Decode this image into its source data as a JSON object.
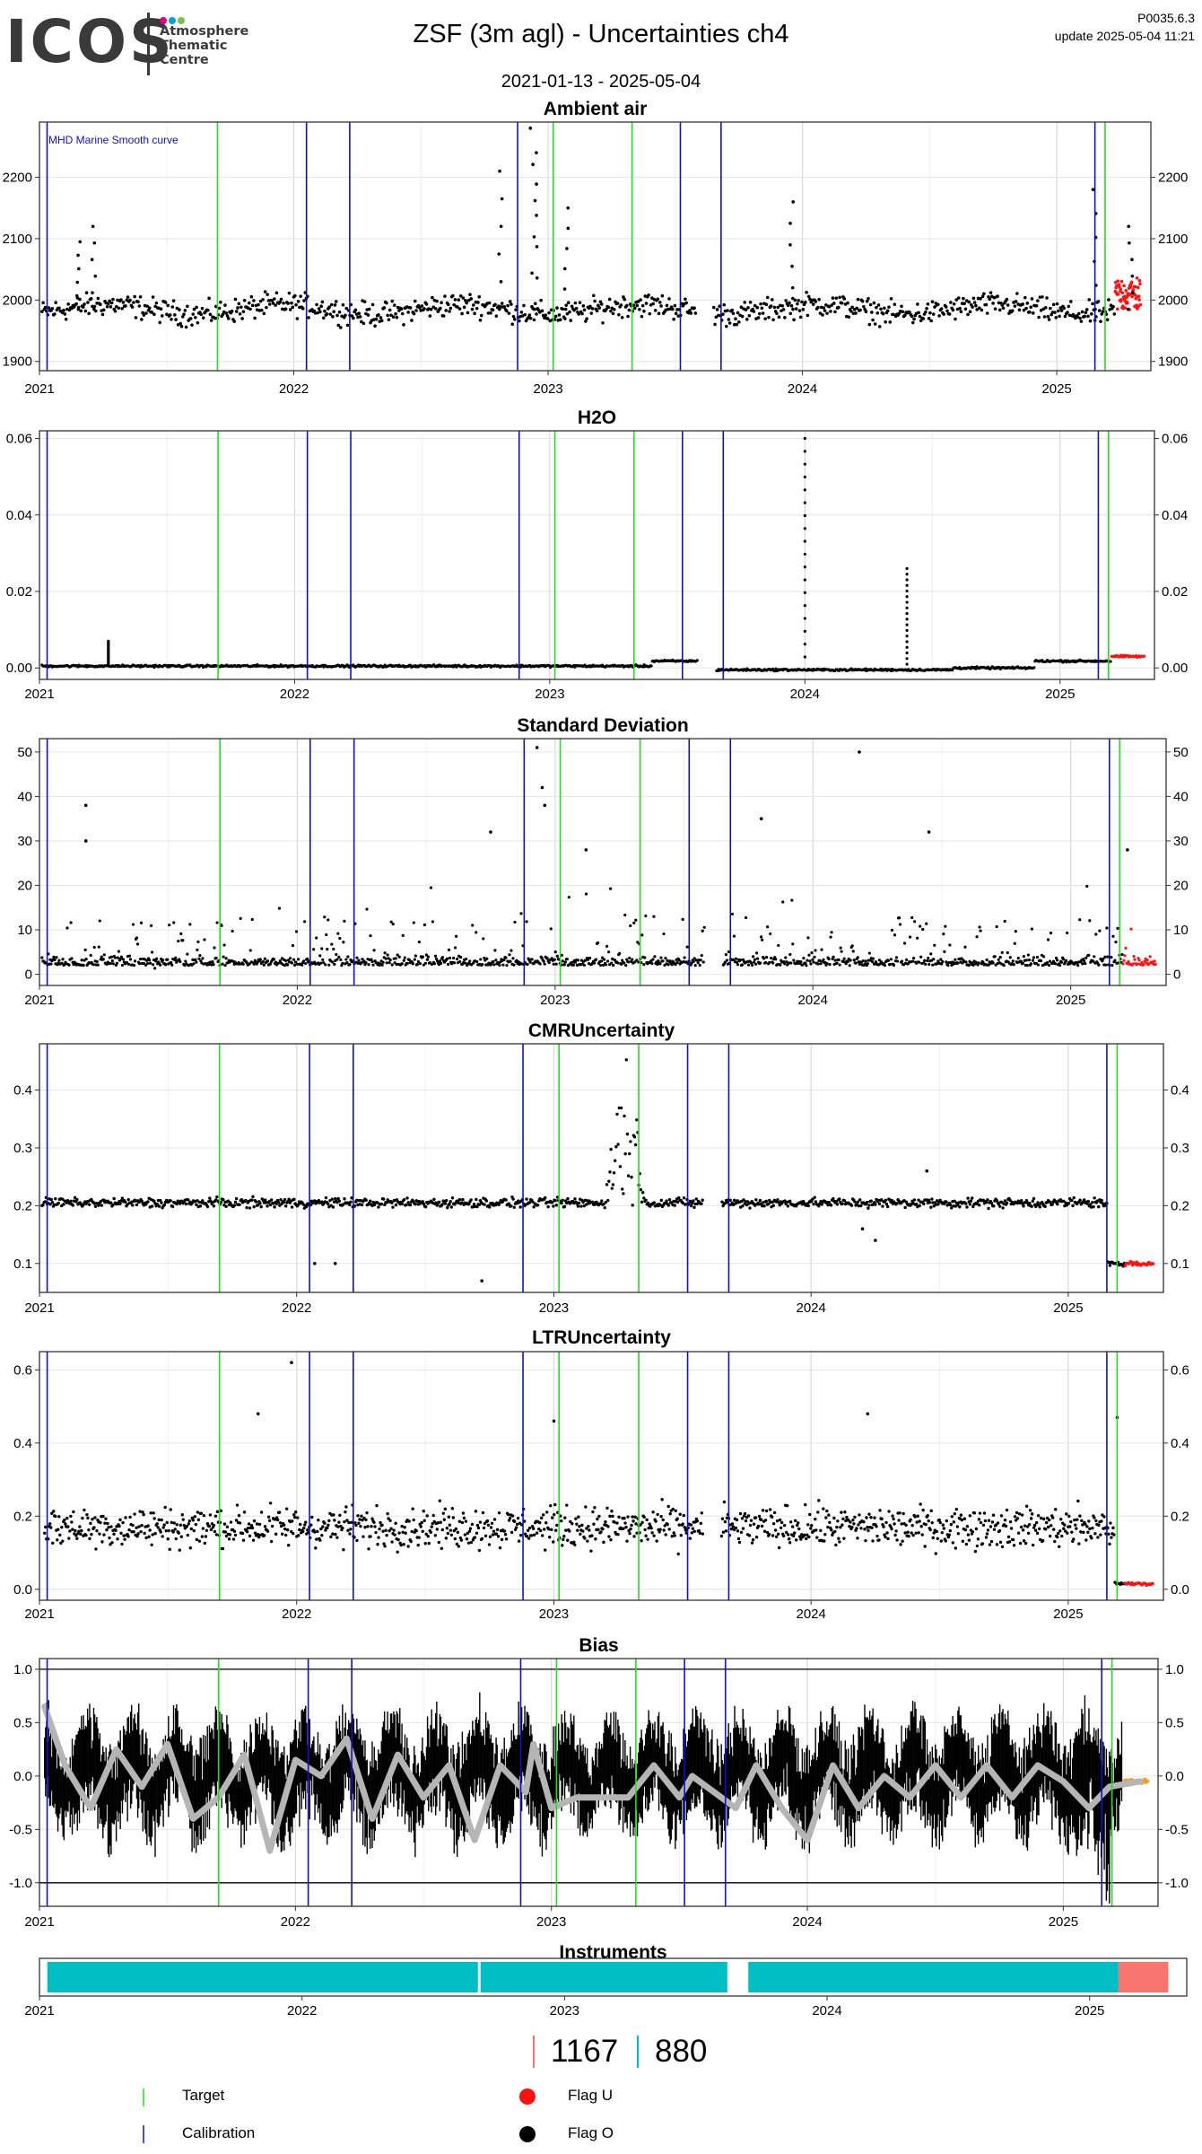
{
  "header": {
    "logo_text": "ICOS",
    "logo_subtitle": "Atmosphere\nThematic\nCentre",
    "logo_dot_colors": [
      "#e6007e",
      "#00a0e3",
      "#7ac143"
    ],
    "title": "ZSF  (3m agl) - Uncertainties ch4",
    "date_range": "2021-01-13 - 2025-05-04",
    "version": "P0035.6.3",
    "update": "update  2025-05-04 11:21"
  },
  "colors": {
    "target": "#22dd22",
    "calibration": "#1010cc",
    "flag_o": "#000000",
    "flag_u": "#ff1111",
    "flag_orange": "#f0a020",
    "bias_smooth": "#b5b5b5",
    "instrument_teal": "#00bfc4",
    "instrument_salmon": "#f8766d"
  },
  "chart_data": [
    {
      "type": "scatter",
      "title": "Ambient air",
      "annotation": "MHD Marine Smooth curve",
      "yticks": [
        1900,
        2000,
        2100,
        2200
      ],
      "ylim": [
        1885,
        2290
      ],
      "xlim": [
        2021.0,
        2025.37
      ],
      "xticks": [
        "2021",
        "2022",
        "2023",
        "2024",
        "2025"
      ],
      "baseline": 1985,
      "spread": 28,
      "red_level": 2010,
      "spikes": [
        [
          2021.14,
          2095
        ],
        [
          2021.2,
          2120
        ],
        [
          2022.8,
          2210
        ],
        [
          2022.93,
          2280
        ],
        [
          2022.95,
          2240
        ],
        [
          2023.06,
          2150
        ],
        [
          2023.95,
          2160
        ],
        [
          2025.14,
          2180
        ],
        [
          2025.28,
          2120
        ]
      ],
      "gaps": [
        [
          2023.58,
          2023.65
        ]
      ],
      "series": [
        {
          "name": "Flag O",
          "values": "approx 1960-2040 ppb continuous 2021.0-2025.23"
        },
        {
          "name": "Flag U",
          "values": "approx 1980-2080 ppb 2025.23-2025.33"
        }
      ],
      "grid": true
    },
    {
      "type": "scatter",
      "title": "H2O",
      "yticks": [
        0.0,
        0.02,
        0.04,
        0.06
      ],
      "ylim": [
        -0.003,
        0.062
      ],
      "xlim": [
        2021.0,
        2025.37
      ],
      "xticks": [
        "2021",
        "2022",
        "2023",
        "2024",
        "2025"
      ],
      "levels": [
        [
          2021.0,
          0.0005
        ],
        [
          2023.4,
          0.0018
        ],
        [
          2023.6,
          -0.0005
        ],
        [
          2024.58,
          0.0
        ],
        [
          2024.9,
          0.0018
        ],
        [
          2025.2,
          0.003
        ]
      ],
      "spikes": [
        [
          2021.27,
          0.007
        ],
        [
          2024.0,
          0.06
        ],
        [
          2024.4,
          0.026
        ]
      ],
      "gaps": [
        [
          2023.58,
          2023.65
        ]
      ],
      "grid": true
    },
    {
      "type": "scatter",
      "title": "Standard Deviation",
      "yticks": [
        0,
        10,
        20,
        30,
        40,
        50
      ],
      "ylim": [
        -2.5,
        53
      ],
      "xlim": [
        2021.0,
        2025.37
      ],
      "xticks": [
        "2021",
        "2022",
        "2023",
        "2024",
        "2025"
      ],
      "base": 2,
      "spread": 10,
      "spikes": [
        [
          2021.18,
          38
        ],
        [
          2021.18,
          30
        ],
        [
          2022.75,
          32
        ],
        [
          2022.93,
          51
        ],
        [
          2022.95,
          42
        ],
        [
          2022.96,
          38
        ],
        [
          2023.12,
          28
        ],
        [
          2023.8,
          35
        ],
        [
          2024.18,
          50
        ],
        [
          2024.45,
          32
        ],
        [
          2025.22,
          28
        ]
      ],
      "gaps": [
        [
          2023.58,
          2023.65
        ]
      ],
      "grid": true
    },
    {
      "type": "scatter",
      "title": "CMRUncertainty",
      "yticks": [
        0.1,
        0.2,
        0.3,
        0.4
      ],
      "ylim": [
        0.05,
        0.48
      ],
      "xlim": [
        2021.0,
        2025.37
      ],
      "xticks": [
        "2021",
        "2022",
        "2023",
        "2024",
        "2025"
      ],
      "base": 0.205,
      "spread": 0.012,
      "drop_level": 0.1,
      "bump": [
        2023.2,
        2023.35,
        0.47
      ],
      "outliers": [
        [
          2022.07,
          0.1
        ],
        [
          2022.15,
          0.1
        ],
        [
          2022.72,
          0.07
        ],
        [
          2024.2,
          0.16
        ],
        [
          2024.25,
          0.14
        ],
        [
          2024.45,
          0.26
        ]
      ],
      "gaps": [
        [
          2023.58,
          2023.65
        ]
      ],
      "grid": true
    },
    {
      "type": "scatter",
      "title": "LTRUncertainty",
      "yticks": [
        0.0,
        0.2,
        0.4,
        0.6
      ],
      "ylim": [
        -0.03,
        0.65
      ],
      "xlim": [
        2021.0,
        2025.37
      ],
      "xticks": [
        "2021",
        "2022",
        "2023",
        "2024",
        "2025"
      ],
      "base": 0.17,
      "spread": 0.08,
      "drop_level": 0.015,
      "spikes": [
        [
          2021.98,
          0.62
        ],
        [
          2021.85,
          0.48
        ],
        [
          2023.0,
          0.46
        ],
        [
          2024.22,
          0.48
        ],
        [
          2025.19,
          0.47
        ]
      ],
      "gaps": [
        [
          2023.58,
          2023.65
        ]
      ],
      "grid": true
    },
    {
      "type": "line",
      "title": "Bias",
      "yticks": [
        -1.0,
        -0.5,
        0.0,
        0.5,
        1.0
      ],
      "ylim": [
        -1.22,
        1.1
      ],
      "xlim": [
        2021.0,
        2025.37
      ],
      "xticks": [
        "2021",
        "2022",
        "2023",
        "2024",
        "2025"
      ],
      "hlines": [
        -1.0,
        1.0
      ],
      "smooth_curve": [
        [
          2021.02,
          0.65
        ],
        [
          2021.1,
          0.1
        ],
        [
          2021.2,
          -0.3
        ],
        [
          2021.3,
          0.25
        ],
        [
          2021.4,
          -0.1
        ],
        [
          2021.5,
          0.3
        ],
        [
          2021.6,
          -0.4
        ],
        [
          2021.7,
          -0.2
        ],
        [
          2021.8,
          0.2
        ],
        [
          2021.9,
          -0.7
        ],
        [
          2022.0,
          0.15
        ],
        [
          2022.1,
          0.0
        ],
        [
          2022.2,
          0.35
        ],
        [
          2022.3,
          -0.4
        ],
        [
          2022.4,
          0.2
        ],
        [
          2022.5,
          -0.2
        ],
        [
          2022.6,
          0.1
        ],
        [
          2022.7,
          -0.6
        ],
        [
          2022.8,
          0.1
        ],
        [
          2022.9,
          -0.15
        ],
        [
          2022.93,
          0.3
        ],
        [
          2023.0,
          -0.3
        ],
        [
          2023.1,
          -0.2
        ],
        [
          2023.3,
          -0.2
        ],
        [
          2023.4,
          0.1
        ],
        [
          2023.5,
          -0.2
        ],
        [
          2023.55,
          0.0
        ],
        [
          2023.72,
          -0.3
        ],
        [
          2023.8,
          0.1
        ],
        [
          2023.9,
          -0.3
        ],
        [
          2024.0,
          -0.6
        ],
        [
          2024.1,
          0.1
        ],
        [
          2024.2,
          -0.3
        ],
        [
          2024.3,
          0.0
        ],
        [
          2024.4,
          -0.2
        ],
        [
          2024.5,
          0.1
        ],
        [
          2024.6,
          -0.2
        ],
        [
          2024.7,
          0.1
        ],
        [
          2024.8,
          -0.2
        ],
        [
          2024.9,
          0.1
        ],
        [
          2025.0,
          -0.05
        ],
        [
          2025.1,
          -0.3
        ],
        [
          2025.18,
          -0.1
        ],
        [
          2025.3,
          -0.05
        ]
      ],
      "orange_level": -0.05,
      "grid": true
    },
    {
      "type": "bar",
      "title": "Instruments",
      "xlim": [
        2021.0,
        2025.37
      ],
      "xticks": [
        "2021",
        "2022",
        "2023",
        "2024",
        "2025"
      ],
      "segments": [
        {
          "instrument": "880",
          "start": 2021.03,
          "end": 2022.67
        },
        {
          "instrument": "880",
          "start": 2022.68,
          "end": 2023.62
        },
        {
          "instrument": "880",
          "start": 2023.7,
          "end": 2025.11
        },
        {
          "instrument": "1167",
          "start": 2025.11,
          "end": 2025.3
        }
      ]
    }
  ],
  "events": {
    "calibration": [
      2021.03,
      2022.05,
      2022.22,
      2022.88,
      2023.52,
      2023.68,
      2025.15
    ],
    "target": [
      2021.7,
      2023.02,
      2023.33,
      2025.19
    ]
  },
  "instrument_counts": [
    {
      "label": "1167",
      "color": "#f8766d"
    },
    {
      "label": "880",
      "color": "#00bfc4"
    }
  ],
  "legend": {
    "target": "Target",
    "calibration": "Calibration",
    "flag_u": "Flag U",
    "flag_o": "Flag O"
  }
}
